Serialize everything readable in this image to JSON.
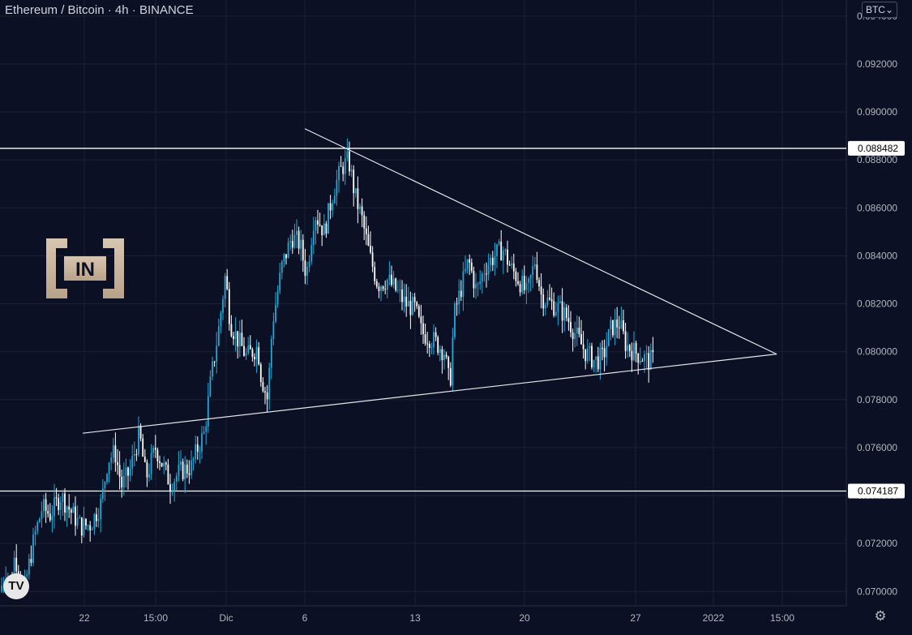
{
  "header": {
    "pair": "Ethereum / Bitcoin",
    "interval": "4h",
    "exchange": "BINANCE",
    "separator": "·",
    "currency_button": "BTC",
    "currency_chevron": "⌄"
  },
  "watermark": {
    "text": "IN"
  },
  "tv_logo": {
    "text": "TV"
  },
  "icons": {
    "settings": "gear-icon",
    "chevron": "chevron-down-icon"
  },
  "colors": {
    "background": "#0c1024",
    "bull": "#26a6d6",
    "bear": "#ffffff",
    "line": "#ffffff",
    "grid": "#1b2035",
    "axis_text": "#b2b5be"
  },
  "chart_data": {
    "type": "candlestick",
    "y_axis_side": "right",
    "ylim": [
      0.0694,
      0.0944
    ],
    "y_ticks": [
      "0.070000",
      "0.072000",
      "0.074000",
      "0.076000",
      "0.078000",
      "0.080000",
      "0.082000",
      "0.084000",
      "0.086000",
      "0.088000",
      "0.090000",
      "0.092000",
      "0.094000"
    ],
    "x_ticks": [
      "22",
      "15:00",
      "Dic",
      "6",
      "13",
      "20",
      "27",
      "2022",
      "15:00"
    ],
    "horizontal_levels": [
      {
        "price": 0.088482,
        "label": "0.088482"
      },
      {
        "price": 0.074187,
        "label": "0.074187"
      }
    ],
    "close_points": [
      [
        0,
        0.07
      ],
      [
        8,
        0.071
      ],
      [
        14,
        0.07
      ],
      [
        18,
        0.0715
      ],
      [
        30,
        0.0701
      ],
      [
        42,
        0.0722
      ],
      [
        52,
        0.0735
      ],
      [
        62,
        0.0732
      ],
      [
        75,
        0.074
      ],
      [
        88,
        0.0733
      ],
      [
        100,
        0.0727
      ],
      [
        112,
        0.0728
      ],
      [
        125,
        0.0737
      ],
      [
        133,
        0.0755
      ],
      [
        142,
        0.0758
      ],
      [
        150,
        0.0744
      ],
      [
        160,
        0.075
      ],
      [
        172,
        0.0766
      ],
      [
        180,
        0.0747
      ],
      [
        192,
        0.076
      ],
      [
        210,
        0.0745
      ],
      [
        222,
        0.075
      ],
      [
        236,
        0.0752
      ],
      [
        244,
        0.076
      ],
      [
        252,
        0.0766
      ],
      [
        260,
        0.0788
      ],
      [
        270,
        0.081
      ],
      [
        278,
        0.0832
      ],
      [
        284,
        0.0812
      ],
      [
        292,
        0.0806
      ],
      [
        304,
        0.0798
      ],
      [
        318,
        0.0802
      ],
      [
        322,
        0.079
      ],
      [
        330,
        0.078
      ],
      [
        336,
        0.0812
      ],
      [
        348,
        0.0836
      ],
      [
        360,
        0.0848
      ],
      [
        370,
        0.0845
      ],
      [
        378,
        0.0832
      ],
      [
        388,
        0.0858
      ],
      [
        400,
        0.085
      ],
      [
        412,
        0.0868
      ],
      [
        422,
        0.0877
      ],
      [
        430,
        0.088
      ],
      [
        438,
        0.0865
      ],
      [
        446,
        0.0856
      ],
      [
        456,
        0.084
      ],
      [
        466,
        0.0828
      ],
      [
        478,
        0.083
      ],
      [
        490,
        0.0825
      ],
      [
        500,
        0.082
      ],
      [
        512,
        0.0818
      ],
      [
        520,
        0.0808
      ],
      [
        530,
        0.0806
      ],
      [
        540,
        0.0803
      ],
      [
        548,
        0.08
      ],
      [
        555,
        0.0785
      ],
      [
        560,
        0.0815
      ],
      [
        570,
        0.0828
      ],
      [
        578,
        0.0838
      ],
      [
        588,
        0.0825
      ],
      [
        598,
        0.0835
      ],
      [
        610,
        0.084
      ],
      [
        620,
        0.0843
      ],
      [
        630,
        0.0835
      ],
      [
        640,
        0.083
      ],
      [
        650,
        0.0824
      ],
      [
        660,
        0.0838
      ],
      [
        668,
        0.0823
      ],
      [
        680,
        0.082
      ],
      [
        690,
        0.0818
      ],
      [
        700,
        0.0814
      ],
      [
        712,
        0.0806
      ],
      [
        722,
        0.08
      ],
      [
        734,
        0.0796
      ],
      [
        744,
        0.0798
      ],
      [
        754,
        0.081
      ],
      [
        764,
        0.0812
      ],
      [
        772,
        0.0803
      ],
      [
        782,
        0.08
      ],
      [
        792,
        0.0798
      ],
      [
        800,
        0.0796
      ],
      [
        808,
        0.0797
      ]
    ],
    "trendlines": [
      {
        "name": "upper",
        "from": [
          376,
          0.0893
        ],
        "to": [
          958,
          0.0799
        ]
      },
      {
        "name": "lower",
        "from": [
          102,
          0.0766
        ],
        "to": [
          958,
          0.0799
        ]
      }
    ]
  }
}
